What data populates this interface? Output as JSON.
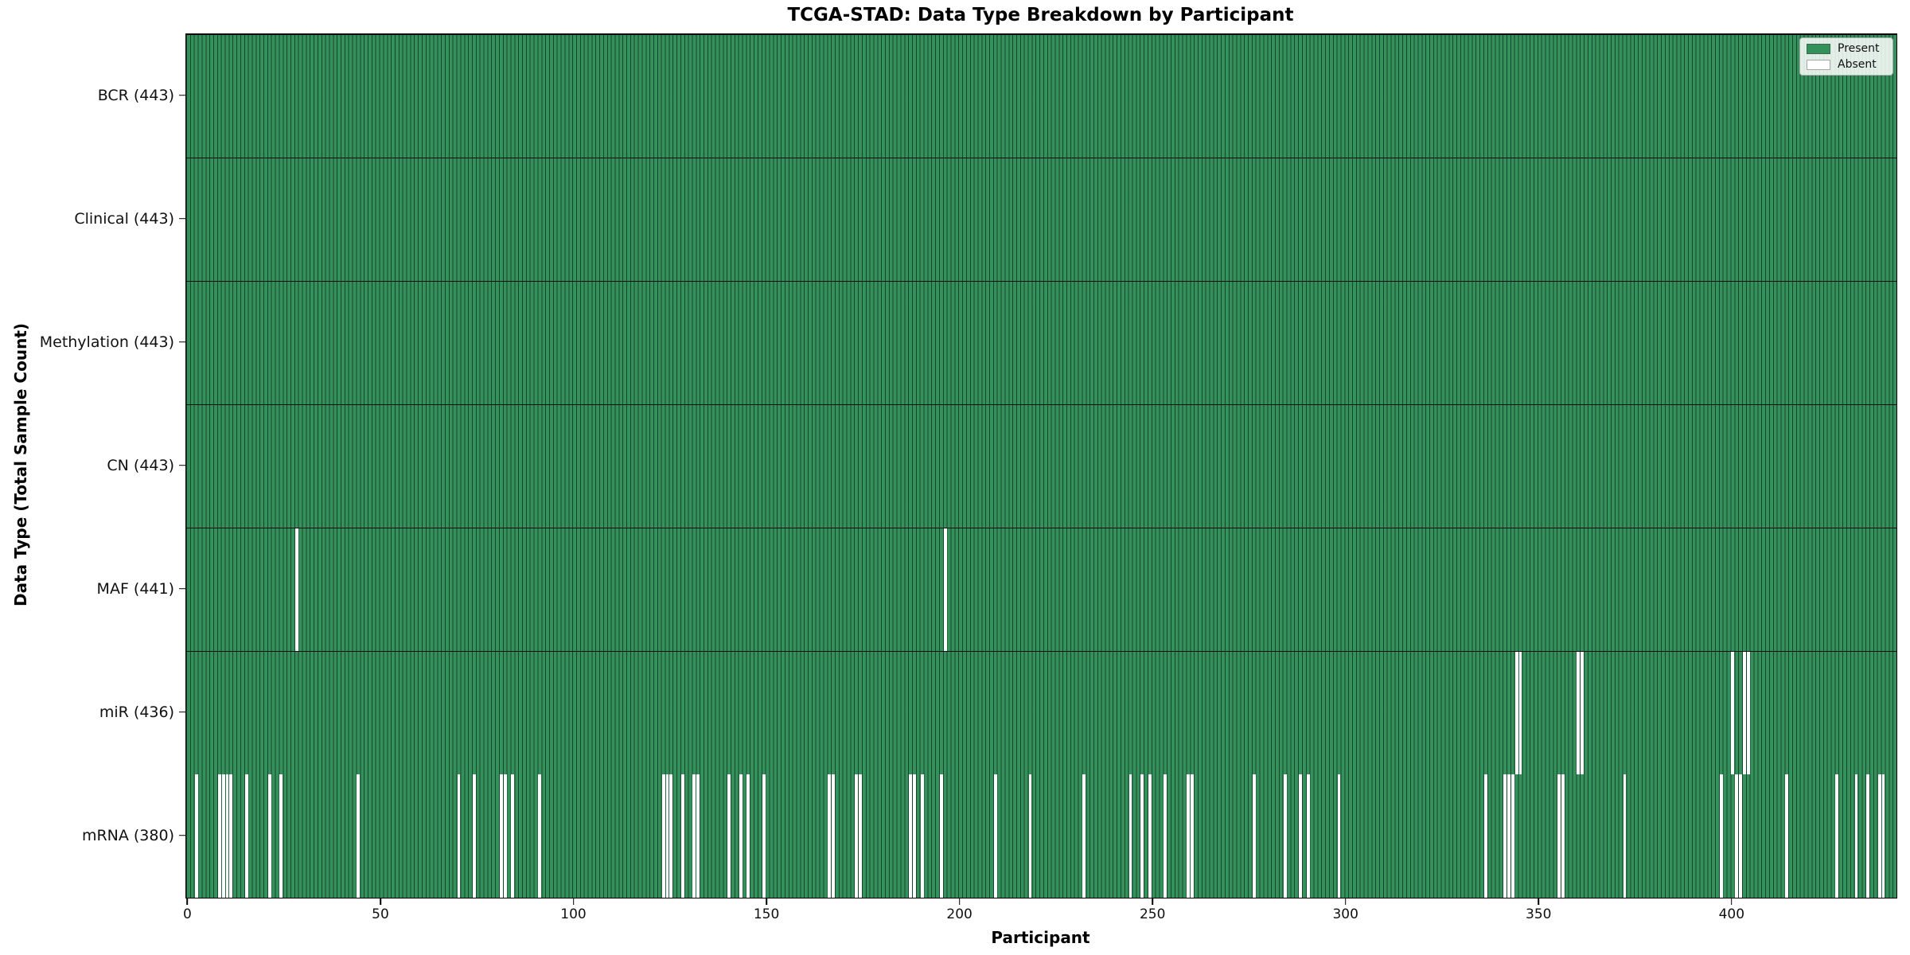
{
  "title": "TCGA-STAD: Data Type Breakdown by Participant",
  "x_axis": {
    "label": "Participant",
    "ticks": [
      0,
      50,
      100,
      150,
      200,
      250,
      300,
      350,
      400
    ],
    "max": 443
  },
  "y_axis": {
    "label": "Data Type (Total Sample Count)"
  },
  "legend": {
    "items": [
      {
        "name": "present",
        "label": "Present"
      },
      {
        "name": "absent",
        "label": "Absent"
      }
    ]
  },
  "colors": {
    "present": "#35915b",
    "absent": "#ffffff",
    "bar_edge": "rgba(12,44,28,0.75)"
  },
  "chart_data": {
    "type": "heatmap",
    "n_participants": 443,
    "x_range": [
      0,
      443
    ],
    "grid": false,
    "legend_position": "upper right",
    "rows": [
      {
        "name": "BCR",
        "label": "BCR (443)",
        "total": 443,
        "absent": []
      },
      {
        "name": "Clinical",
        "label": "Clinical (443)",
        "total": 443,
        "absent": []
      },
      {
        "name": "Methylation",
        "label": "Methylation (443)",
        "total": 443,
        "absent": []
      },
      {
        "name": "CN",
        "label": "CN (443)",
        "total": 443,
        "absent": []
      },
      {
        "name": "MAF",
        "label": "MAF (441)",
        "total": 441,
        "absent": [
          28,
          196
        ]
      },
      {
        "name": "miR",
        "label": "miR (436)",
        "total": 436,
        "absent": [
          344,
          345,
          360,
          361,
          400,
          403,
          404
        ]
      },
      {
        "name": "mRNA",
        "label": "mRNA (380)",
        "total": 380,
        "absent": [
          2,
          8,
          9,
          10,
          11,
          15,
          21,
          24,
          44,
          70,
          74,
          81,
          82,
          84,
          91,
          123,
          124,
          125,
          128,
          131,
          132,
          140,
          143,
          145,
          149,
          166,
          167,
          173,
          174,
          187,
          188,
          190,
          195,
          209,
          218,
          232,
          244,
          247,
          249,
          253,
          259,
          260,
          276,
          284,
          288,
          290,
          298,
          336,
          341,
          342,
          343,
          355,
          356,
          372,
          397,
          401,
          402,
          414,
          427,
          432,
          435,
          438,
          439
        ]
      }
    ]
  }
}
